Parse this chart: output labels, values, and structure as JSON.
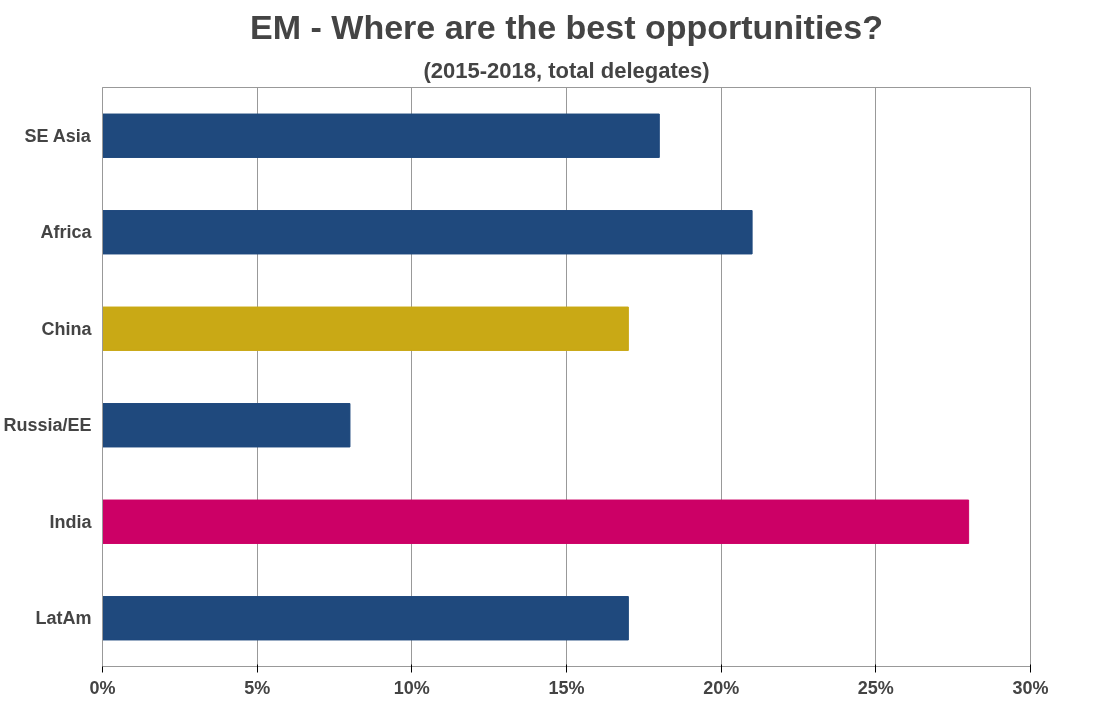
{
  "chart_data": {
    "type": "bar",
    "orientation": "horizontal",
    "title": "EM - Where are the best opportunities?",
    "subtitle": "(2015-2018, total delegates)",
    "categories": [
      "SE Asia",
      "Africa",
      "China",
      "Russia/EE",
      "India",
      "LatAm"
    ],
    "values": [
      18,
      21,
      17,
      8,
      28,
      17
    ],
    "colors": [
      "#1f497d",
      "#1f497d",
      "#c9a915",
      "#1f497d",
      "#cc0066",
      "#1f497d"
    ],
    "xlim": [
      0,
      30
    ],
    "xticks": [
      {
        "value": 0,
        "label": "0%"
      },
      {
        "value": 5,
        "label": "5%"
      },
      {
        "value": 10,
        "label": "10%"
      },
      {
        "value": 15,
        "label": "15%"
      },
      {
        "value": 20,
        "label": "20%"
      },
      {
        "value": 25,
        "label": "25%"
      },
      {
        "value": 30,
        "label": "30%"
      }
    ],
    "grid": "x"
  }
}
